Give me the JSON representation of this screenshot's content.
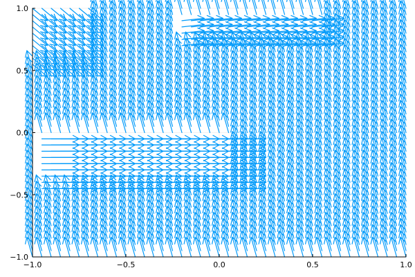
{
  "chart_data": {
    "type": "quiver",
    "title": "",
    "xlabel": "",
    "ylabel": "",
    "xlim": [
      -1.0,
      1.0
    ],
    "ylim": [
      -1.0,
      1.0
    ],
    "x_ticks": [
      -1.0,
      -0.5,
      0.0,
      0.5,
      1.0
    ],
    "x_tick_labels": [
      "−1.0",
      "−0.5",
      "0.0",
      "0.5",
      "1.0"
    ],
    "y_ticks": [
      -1.0,
      -0.5,
      0.0,
      0.5,
      1.0
    ],
    "y_tick_labels": [
      "−1.0",
      "−0.5",
      "0.0",
      "0.5",
      "1.0"
    ],
    "grid": true,
    "legend": "none",
    "series": [
      {
        "color": "#009AFA",
        "grid": {
          "nx": 41,
          "ny": 41,
          "x_range": [
            -1.0,
            1.0
          ],
          "y_range": [
            -1.0,
            1.0
          ]
        },
        "dominant_vector": [
          -0.03,
          0.16
        ],
        "regions": [
          {
            "region": "horizontal band",
            "x_range": [
              -0.95,
              0.1
            ],
            "y_range": [
              -0.45,
              -0.05
            ],
            "vector": [
              0.2,
              0.0
            ]
          },
          {
            "region": "upper-left swirl",
            "x_range": [
              -1.0,
              -0.7
            ],
            "y_range": [
              0.55,
              1.0
            ],
            "vector": [
              0.08,
              -0.1
            ]
          },
          {
            "region": "upper band",
            "x_range": [
              -0.2,
              0.6
            ],
            "y_range": [
              0.7,
              0.9
            ],
            "vector": [
              0.12,
              0.02
            ]
          }
        ]
      }
    ]
  }
}
